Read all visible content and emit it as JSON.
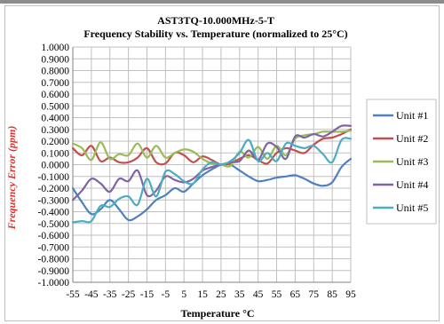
{
  "chart_data": {
    "type": "line",
    "title": "AST3TQ-10.000MHz-5-T",
    "subtitle": "Frequency Stability vs. Temperature  (normalized to 25°C)",
    "xlabel": "Temperature °C",
    "ylabel": "Frequency Error (ppm)",
    "ylim": [
      -1.0,
      1.0
    ],
    "xlim": [
      -55,
      95
    ],
    "x_ticks": [
      -55,
      -45,
      -35,
      -25,
      -15,
      -5,
      5,
      15,
      25,
      35,
      45,
      55,
      65,
      75,
      85,
      95
    ],
    "y_ticks": [
      1.0,
      0.9,
      0.8,
      0.7,
      0.6,
      0.5,
      0.4,
      0.3,
      0.2,
      0.1,
      0.0,
      -0.1,
      -0.2,
      -0.3,
      -0.4,
      -0.5,
      -0.6,
      -0.7,
      -0.8,
      -0.9,
      -1.0
    ],
    "grid": true,
    "legend_position": "right",
    "series": [
      {
        "name": "Unit #1",
        "color": "#4f81bd",
        "x": [
          -55,
          -50,
          -45,
          -40,
          -35,
          -30,
          -25,
          -20,
          -15,
          -10,
          -5,
          0,
          5,
          10,
          15,
          20,
          25,
          30,
          35,
          40,
          45,
          50,
          55,
          60,
          65,
          70,
          75,
          80,
          85,
          90,
          95
        ],
        "y": [
          -0.2,
          -0.32,
          -0.42,
          -0.38,
          -0.3,
          -0.38,
          -0.47,
          -0.44,
          -0.38,
          -0.3,
          -0.26,
          -0.2,
          -0.23,
          -0.16,
          -0.09,
          -0.04,
          0.0,
          0.0,
          -0.05,
          -0.1,
          -0.14,
          -0.13,
          -0.11,
          -0.1,
          -0.09,
          -0.12,
          -0.16,
          -0.18,
          -0.15,
          -0.02,
          0.05
        ]
      },
      {
        "name": "Unit #2",
        "color": "#c0504d",
        "x": [
          -55,
          -50,
          -45,
          -40,
          -35,
          -30,
          -25,
          -20,
          -15,
          -10,
          -5,
          0,
          5,
          10,
          15,
          20,
          25,
          30,
          35,
          40,
          45,
          50,
          55,
          60,
          65,
          70,
          75,
          80,
          85,
          90,
          95
        ],
        "y": [
          0.14,
          0.08,
          0.16,
          0.03,
          0.06,
          0.02,
          0.02,
          0.06,
          0.14,
          0.02,
          0.01,
          0.1,
          0.08,
          0.02,
          0.07,
          0.04,
          0.0,
          0.01,
          0.05,
          0.08,
          0.04,
          0.01,
          0.1,
          0.14,
          0.12,
          0.1,
          0.17,
          0.22,
          0.23,
          0.26,
          0.3
        ]
      },
      {
        "name": "Unit #3",
        "color": "#9bbb59",
        "x": [
          -55,
          -50,
          -45,
          -40,
          -35,
          -30,
          -25,
          -20,
          -15,
          -10,
          -5,
          0,
          5,
          10,
          15,
          20,
          25,
          30,
          35,
          40,
          45,
          50,
          55,
          60,
          65,
          70,
          75,
          80,
          85,
          90,
          95
        ],
        "y": [
          0.18,
          0.14,
          0.04,
          0.19,
          0.05,
          0.09,
          0.08,
          0.18,
          0.06,
          0.16,
          0.06,
          0.1,
          0.13,
          0.11,
          0.05,
          0.01,
          0.0,
          -0.01,
          0.11,
          0.06,
          0.15,
          0.05,
          0.16,
          0.08,
          0.22,
          0.25,
          0.26,
          0.28,
          0.28,
          0.28,
          0.29
        ]
      },
      {
        "name": "Unit #4",
        "color": "#8064a2",
        "x": [
          -55,
          -50,
          -45,
          -40,
          -35,
          -30,
          -25,
          -20,
          -15,
          -10,
          -5,
          0,
          5,
          10,
          15,
          20,
          25,
          30,
          35,
          40,
          45,
          50,
          55,
          60,
          65,
          70,
          75,
          80,
          85,
          90,
          95
        ],
        "y": [
          -0.3,
          -0.22,
          -0.12,
          -0.16,
          -0.23,
          -0.12,
          -0.14,
          -0.05,
          -0.26,
          -0.22,
          -0.1,
          -0.13,
          -0.15,
          -0.12,
          -0.05,
          -0.02,
          0.0,
          0.02,
          0.03,
          0.12,
          0.04,
          0.18,
          0.15,
          0.05,
          0.24,
          0.23,
          0.26,
          0.24,
          0.28,
          0.33,
          0.33
        ]
      },
      {
        "name": "Unit #5",
        "color": "#4bacc6",
        "x": [
          -55,
          -50,
          -45,
          -40,
          -35,
          -30,
          -25,
          -20,
          -15,
          -10,
          -5,
          0,
          5,
          10,
          15,
          20,
          25,
          30,
          35,
          40,
          45,
          50,
          55,
          60,
          65,
          70,
          75,
          80,
          85,
          90,
          95
        ],
        "y": [
          -0.49,
          -0.48,
          -0.48,
          -0.35,
          -0.36,
          -0.29,
          -0.27,
          -0.34,
          -0.12,
          -0.27,
          -0.06,
          -0.08,
          -0.14,
          -0.16,
          -0.04,
          0.02,
          0.0,
          0.03,
          0.1,
          0.21,
          0.03,
          0.1,
          0.03,
          0.18,
          0.16,
          0.14,
          0.16,
          0.09,
          0.02,
          0.21,
          0.22
        ]
      }
    ]
  },
  "colors": {
    "ylabel": "#e0302b",
    "grid": "#bfbfbf",
    "axis": "#808080",
    "frame": "#bfbfbf"
  }
}
